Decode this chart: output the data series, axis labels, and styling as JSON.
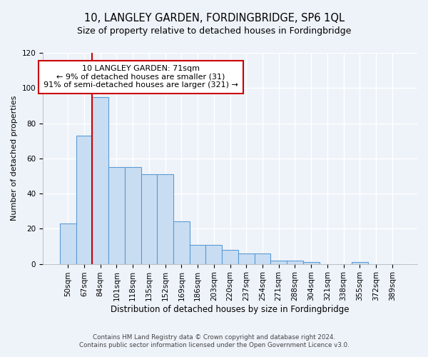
{
  "title": "10, LANGLEY GARDEN, FORDINGBRIDGE, SP6 1QL",
  "subtitle": "Size of property relative to detached houses in Fordingbridge",
  "xlabel": "Distribution of detached houses by size in Fordingbridge",
  "ylabel": "Number of detached properties",
  "footnote1": "Contains HM Land Registry data © Crown copyright and database right 2024.",
  "footnote2": "Contains public sector information licensed under the Open Government Licence v3.0.",
  "bar_labels": [
    "50sqm",
    "67sqm",
    "84sqm",
    "101sqm",
    "118sqm",
    "135sqm",
    "152sqm",
    "169sqm",
    "186sqm",
    "203sqm",
    "220sqm",
    "237sqm",
    "254sqm",
    "271sqm",
    "288sqm",
    "304sqm",
    "321sqm",
    "338sqm",
    "355sqm",
    "372sqm",
    "389sqm"
  ],
  "bar_values": [
    23,
    73,
    95,
    55,
    55,
    51,
    51,
    24,
    11,
    11,
    8,
    6,
    6,
    2,
    2,
    1,
    0,
    0,
    1,
    0,
    0
  ],
  "bar_color": "#c9ddf2",
  "bar_edge_color": "#5b9bd5",
  "vline_color": "#cc0000",
  "vline_x_index": 1.5,
  "ylim": [
    0,
    120
  ],
  "yticks": [
    0,
    20,
    40,
    60,
    80,
    100,
    120
  ],
  "annotation_text": "10 LANGLEY GARDEN: 71sqm\n← 9% of detached houses are smaller (31)\n91% of semi-detached houses are larger (321) →",
  "bg_color": "#eef3fa",
  "plot_bg_color": "#eef3fa",
  "grid_color": "#ffffff",
  "title_fontsize": 10.5,
  "subtitle_fontsize": 9,
  "annotation_fontsize": 8,
  "ylabel_fontsize": 8,
  "xlabel_fontsize": 8.5,
  "tick_fontsize": 7.5
}
